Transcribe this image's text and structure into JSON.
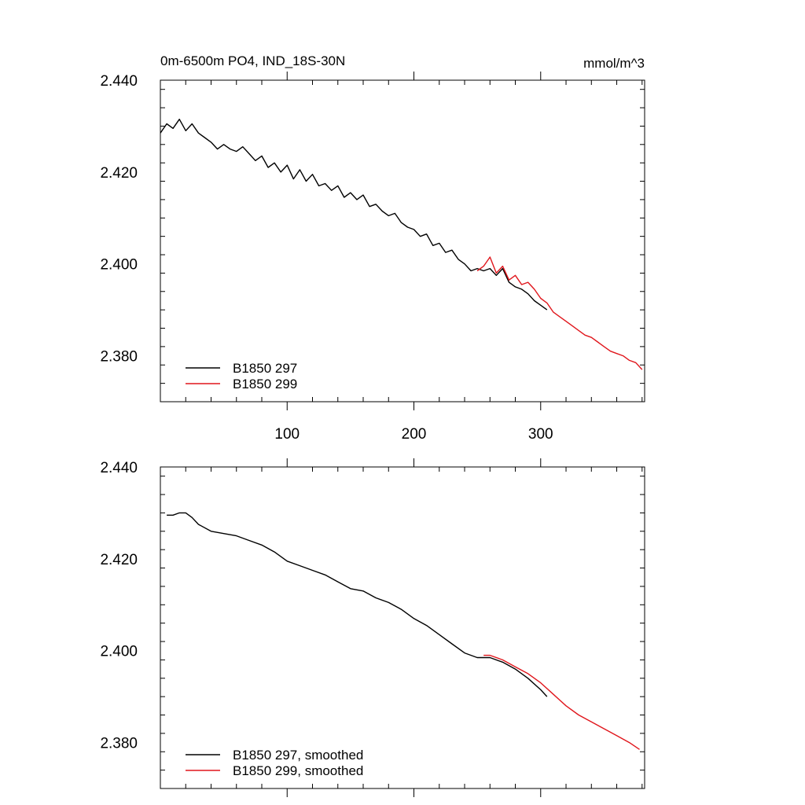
{
  "figure": {
    "title_left": "0m-6500m PO4, IND_18S-30N",
    "title_right": "mmol/m^3"
  },
  "colors": {
    "run_297": "#000000",
    "run_299": "#e0161c"
  },
  "chart_data": [
    {
      "type": "line",
      "title": "0m-6500m PO4, IND_18S-30N",
      "units": "mmol/m^3",
      "xlabel": "",
      "ylabel": "",
      "xlim": [
        0,
        382
      ],
      "ylim": [
        2.37,
        2.44
      ],
      "x_ticks": [
        100,
        200,
        300
      ],
      "x_tick_labels": [
        "100",
        "200",
        "300"
      ],
      "y_ticks": [
        2.38,
        2.4,
        2.42,
        2.44
      ],
      "y_tick_labels": [
        "2.380",
        "2.400",
        "2.420",
        "2.440"
      ],
      "legend_position": "bottom-left",
      "series": [
        {
          "name": "B1850 297",
          "color": "#000000",
          "x": [
            0,
            5,
            10,
            15,
            20,
            25,
            30,
            35,
            40,
            45,
            50,
            55,
            60,
            65,
            70,
            75,
            80,
            85,
            90,
            95,
            100,
            105,
            110,
            115,
            120,
            125,
            130,
            135,
            140,
            145,
            150,
            155,
            160,
            165,
            170,
            175,
            180,
            185,
            190,
            195,
            200,
            205,
            210,
            215,
            220,
            225,
            230,
            235,
            240,
            245,
            250,
            255,
            260,
            265,
            270,
            275,
            280,
            285,
            290,
            295,
            300,
            305
          ],
          "values": [
            2.4285,
            2.4305,
            2.4295,
            2.4315,
            2.429,
            2.4305,
            2.4285,
            2.4275,
            2.4265,
            2.425,
            2.426,
            2.425,
            2.4245,
            2.4255,
            2.424,
            2.4225,
            2.4235,
            2.421,
            2.422,
            2.42,
            2.4215,
            2.4185,
            2.4205,
            2.418,
            2.4195,
            2.417,
            2.4175,
            2.416,
            2.417,
            2.4145,
            2.4155,
            2.414,
            2.415,
            2.4125,
            2.413,
            2.4115,
            2.4105,
            2.411,
            2.409,
            2.408,
            2.4075,
            2.406,
            2.4065,
            2.404,
            2.4045,
            2.4025,
            2.403,
            2.401,
            2.4,
            2.3985,
            2.399,
            2.3985,
            2.399,
            2.3975,
            2.399,
            2.396,
            2.395,
            2.3945,
            2.3935,
            2.392,
            2.391,
            2.39
          ]
        },
        {
          "name": "B1850 299",
          "color": "#e0161c",
          "x": [
            250,
            255,
            260,
            265,
            270,
            275,
            280,
            285,
            290,
            295,
            300,
            305,
            310,
            315,
            320,
            325,
            330,
            335,
            340,
            345,
            350,
            355,
            360,
            365,
            370,
            375,
            380
          ],
          "values": [
            2.3985,
            2.3995,
            2.4015,
            2.398,
            2.3995,
            2.3965,
            2.3975,
            2.3955,
            2.396,
            2.3945,
            2.3925,
            2.3915,
            2.3895,
            2.3885,
            2.3875,
            2.3865,
            2.3855,
            2.3845,
            2.384,
            2.383,
            2.382,
            2.381,
            2.3805,
            2.38,
            2.379,
            2.3785,
            2.377
          ]
        }
      ]
    },
    {
      "type": "line",
      "title": "",
      "xlabel": "",
      "ylabel": "",
      "xlim": [
        0,
        382
      ],
      "ylim": [
        2.37,
        2.44
      ],
      "x_ticks": [
        100,
        200,
        300
      ],
      "x_tick_labels": [],
      "y_ticks": [
        2.38,
        2.4,
        2.42,
        2.44
      ],
      "y_tick_labels": [
        "2.380",
        "2.400",
        "2.420",
        "2.440"
      ],
      "legend_position": "bottom-left",
      "series": [
        {
          "name": "B1850 297, smoothed",
          "color": "#000000",
          "x": [
            5,
            10,
            15,
            20,
            25,
            30,
            40,
            50,
            60,
            70,
            80,
            90,
            100,
            110,
            120,
            130,
            140,
            150,
            160,
            170,
            180,
            190,
            200,
            210,
            220,
            230,
            240,
            250,
            260,
            270,
            280,
            290,
            300,
            305
          ],
          "values": [
            2.4295,
            2.4295,
            2.43,
            2.43,
            2.429,
            2.4275,
            2.426,
            2.4255,
            2.425,
            2.424,
            2.423,
            2.4215,
            2.4195,
            2.4185,
            2.4175,
            2.4165,
            2.415,
            2.4135,
            2.413,
            2.4115,
            2.4105,
            2.409,
            2.407,
            2.4055,
            2.4035,
            2.4015,
            2.3995,
            2.3985,
            2.3985,
            2.3975,
            2.396,
            2.394,
            2.3915,
            2.39
          ]
        },
        {
          "name": "B1850 299, smoothed",
          "color": "#e0161c",
          "x": [
            255,
            260,
            270,
            280,
            290,
            300,
            310,
            320,
            330,
            340,
            350,
            360,
            370,
            378
          ],
          "values": [
            2.399,
            2.399,
            2.398,
            2.3965,
            2.395,
            2.393,
            2.3905,
            2.388,
            2.386,
            2.3845,
            2.383,
            2.3815,
            2.38,
            2.3785
          ]
        }
      ]
    }
  ]
}
